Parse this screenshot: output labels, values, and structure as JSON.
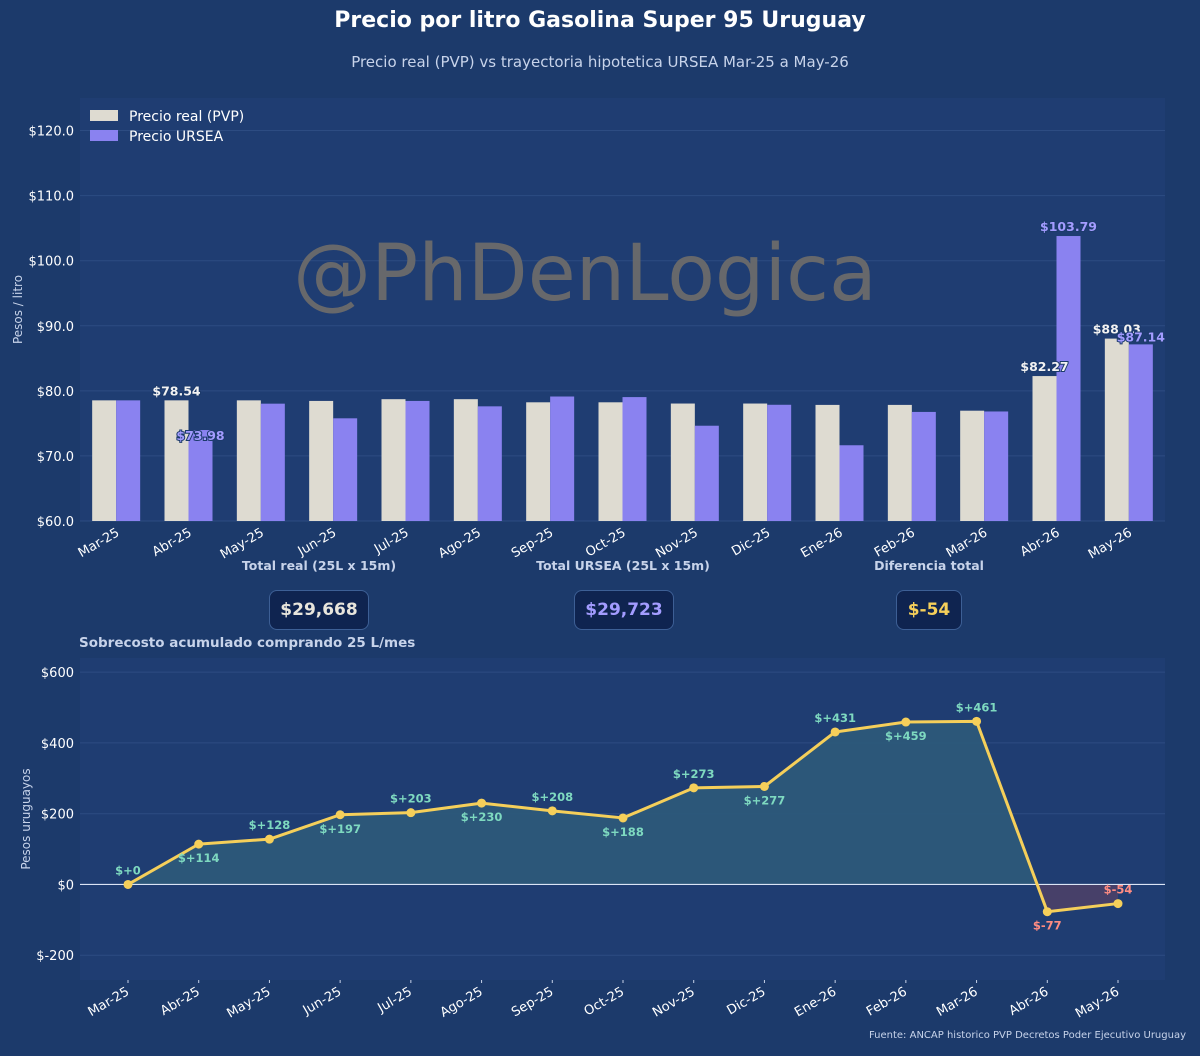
{
  "title": "Precio por litro Gasolina Super 95 Uruguay",
  "subtitle": "Precio real (PVP) vs trayectoria hipotetica URSEA  Mar-25 a May-26",
  "watermark": "@PhDenLogica",
  "source": "Fuente: ANCAP historico PVP  Decretos Poder Ejecutivo Uruguay",
  "summary": {
    "total_real_label": "Total real (25L x 15m)",
    "total_real_value": "$29,668",
    "total_ursea_label": "Total URSEA (25L x 15m)",
    "total_ursea_value": "$29,723",
    "diff_label": "Diferencia total",
    "diff_value": "$-54"
  },
  "colors": {
    "background": "#1c3a6b",
    "plot_bg": "#1f3d72",
    "real": "#dedbd1",
    "ursea": "#8a82f0",
    "line": "#f5cf5a",
    "positive_label": "#7ed9c0",
    "negative_label": "#ff8c82",
    "area_positive": "#2e5a7a",
    "area_negative": "#4b4068"
  },
  "chart_data": [
    {
      "type": "bar",
      "title": "",
      "xlabel": "",
      "ylabel": "Pesos / litro",
      "ylim": [
        60,
        125
      ],
      "yticks": [
        60,
        70,
        80,
        90,
        100,
        110,
        120
      ],
      "ytick_format": "$%.1f",
      "grid": true,
      "legend_position": "top-left",
      "categories": [
        "Mar-25",
        "Abr-25",
        "May-25",
        "Jun-25",
        "Jul-25",
        "Ago-25",
        "Sep-25",
        "Oct-25",
        "Nov-25",
        "Dic-25",
        "Ene-26",
        "Feb-26",
        "Mar-26",
        "Abr-26",
        "May-26"
      ],
      "series": [
        {
          "name": "Precio real (PVP)",
          "values": [
            78.54,
            78.54,
            78.54,
            78.45,
            78.72,
            78.72,
            78.24,
            78.24,
            78.05,
            78.05,
            77.84,
            77.84,
            76.95,
            82.27,
            88.03
          ]
        },
        {
          "name": "Precio URSEA",
          "values": [
            78.54,
            73.98,
            78.03,
            75.78,
            78.45,
            77.62,
            79.13,
            79.04,
            74.64,
            77.86,
            71.64,
            76.76,
            76.83,
            103.79,
            87.14
          ]
        }
      ],
      "annotations": [
        {
          "series": 0,
          "index": 1,
          "text": "$78.54"
        },
        {
          "series": 1,
          "index": 1,
          "text": "$73.98"
        },
        {
          "series": 0,
          "index": 13,
          "text": "$82.27"
        },
        {
          "series": 1,
          "index": 13,
          "text": "$103.79"
        },
        {
          "series": 0,
          "index": 14,
          "text": "$88.03"
        },
        {
          "series": 1,
          "index": 14,
          "text": "$87.14"
        }
      ]
    },
    {
      "type": "line",
      "title": "Sobrecosto acumulado comprando 25 L/mes",
      "xlabel": "",
      "ylabel": "Pesos uruguayos",
      "ylim": [
        -270,
        640
      ],
      "yticks": [
        -200,
        0,
        200,
        400,
        600
      ],
      "ytick_labels": [
        "$-200",
        "$0",
        "$200",
        "$400",
        "$600"
      ],
      "grid": true,
      "categories": [
        "Mar-25",
        "Abr-25",
        "May-25",
        "Jun-25",
        "Jul-25",
        "Ago-25",
        "Sep-25",
        "Oct-25",
        "Nov-25",
        "Dic-25",
        "Ene-26",
        "Feb-26",
        "Mar-26",
        "Abr-26",
        "May-26"
      ],
      "series": [
        {
          "values": [
            0,
            114,
            128,
            197,
            203,
            230,
            208,
            188,
            273,
            277,
            431,
            459,
            461,
            -77,
            -54
          ]
        }
      ],
      "data_labels": [
        "$+0",
        "$+114",
        "$+128",
        "$+197",
        "$+203",
        "$+230",
        "$+208",
        "$+188",
        "$+273",
        "$+277",
        "$+431",
        "$+459",
        "$+461",
        "$-77",
        "$-54"
      ]
    }
  ]
}
